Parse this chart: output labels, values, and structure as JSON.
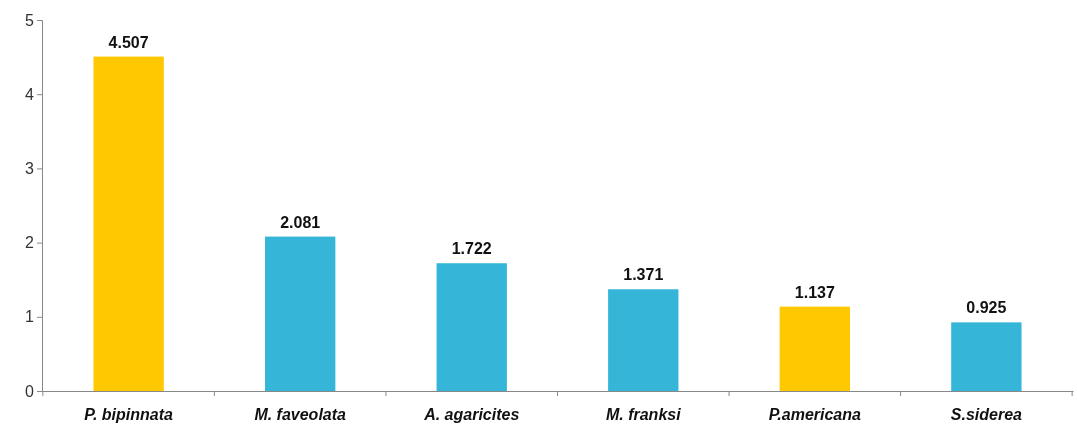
{
  "chart_data": {
    "type": "bar",
    "categories": [
      "P. bipinnata",
      "M. faveolata",
      "A. agaricites",
      "M. franksi",
      "P.americana",
      "S.siderea"
    ],
    "values": [
      4.507,
      2.081,
      1.722,
      1.371,
      1.137,
      0.925
    ],
    "colors": [
      "#ffc800",
      "#35b6d8",
      "#35b6d8",
      "#35b6d8",
      "#ffc800",
      "#35b6d8"
    ],
    "ylim": [
      0,
      5
    ],
    "yticks": [
      0,
      1,
      2,
      3,
      4,
      5
    ],
    "data_labels": true
  }
}
